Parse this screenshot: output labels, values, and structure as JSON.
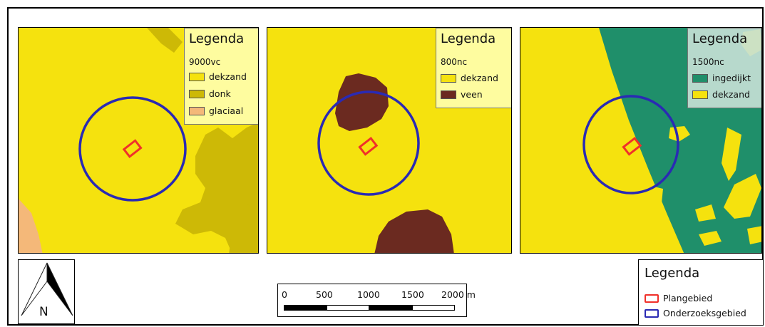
{
  "colors": {
    "dekzand": "#f5e20e",
    "donk": "#cdb906",
    "glaciaal": "#f4b879",
    "veen": "#6b2a20",
    "ingedijkt": "#1f8f6a",
    "plangebied": "#f0302a",
    "onderzoeksgebied": "#2a2ab4"
  },
  "panels": [
    {
      "legend_title": "Legenda",
      "period": "9000vc",
      "items": [
        {
          "label": "dekzand",
          "color": "#f5e20e"
        },
        {
          "label": "donk",
          "color": "#cdb906"
        },
        {
          "label": "glaciaal",
          "color": "#f4b879"
        }
      ]
    },
    {
      "legend_title": "Legenda",
      "period": "800nc",
      "items": [
        {
          "label": "dekzand",
          "color": "#f5e20e"
        },
        {
          "label": "veen",
          "color": "#6b2a20"
        }
      ]
    },
    {
      "legend_title": "Legenda",
      "period": "1500nc",
      "items": [
        {
          "label": "ingedijkt",
          "color": "#1f8f6a"
        },
        {
          "label": "dekzand",
          "color": "#f5e20e"
        }
      ]
    }
  ],
  "north_arrow": {
    "label": "N"
  },
  "scalebar": {
    "ticks": [
      "0",
      "500",
      "1000",
      "1500",
      "2000 m"
    ]
  },
  "main_legend": {
    "title": "Legenda",
    "items": [
      {
        "label": "Plangebied",
        "color": "#f0302a"
      },
      {
        "label": "Onderzoeksgebied",
        "color": "#2a2ab4"
      }
    ]
  }
}
